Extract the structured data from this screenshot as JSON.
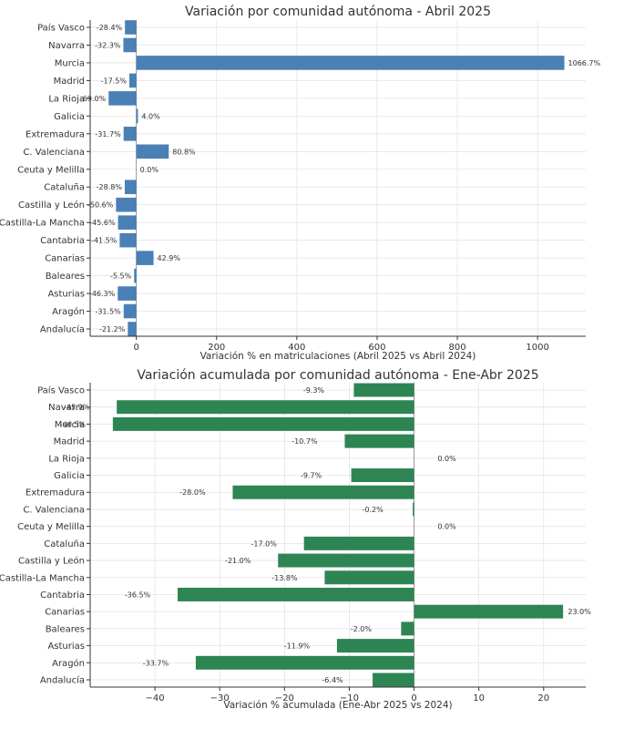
{
  "chart_data": [
    {
      "type": "bar",
      "orientation": "horizontal",
      "title": "Variación por comunidad autónoma - Abril 2025",
      "xlabel": "Variación % en matriculaciones (Abril 2025 vs Abril 2024)",
      "ylabel": "",
      "xlim": [
        -115,
        1120
      ],
      "xticks": [
        0,
        200,
        400,
        600,
        800,
        1000
      ],
      "xtick_labels": [
        "0",
        "200",
        "400",
        "600",
        "800",
        "1000"
      ],
      "grid": true,
      "color": "#4a80b6",
      "categories": [
        "País Vasco",
        "Navarra",
        "Murcia",
        "Madrid",
        "La Rioja",
        "Galicia",
        "Extremadura",
        "C. Valenciana",
        "Ceuta y Melilla",
        "Cataluña",
        "Castilla y León",
        "Castilla-La Mancha",
        "Cantabria",
        "Canarias",
        "Baleares",
        "Asturias",
        "Aragón",
        "Andalucía"
      ],
      "values": [
        -28.4,
        -32.3,
        1066.7,
        -17.5,
        -69.0,
        4.0,
        -31.7,
        80.8,
        0.0,
        -28.8,
        -50.6,
        -45.6,
        -41.5,
        42.9,
        -5.5,
        -46.3,
        -31.5,
        -21.2
      ],
      "value_labels": [
        "-28.4%",
        "-32.3%",
        "1066.7%",
        "-17.5%",
        "-69.0%",
        "4.0%",
        "-31.7%",
        "80.8%",
        "0.0%",
        "-28.8%",
        "-50.6%",
        "-45.6%",
        "-41.5%",
        "42.9%",
        "-5.5%",
        "-46.3%",
        "-31.5%",
        "-21.2%"
      ]
    },
    {
      "type": "bar",
      "orientation": "horizontal",
      "title": "Variación acumulada por comunidad autónoma - Ene-Abr 2025",
      "xlabel": "Variación % acumulada (Ene-Abr 2025 vs 2024)",
      "ylabel": "",
      "xlim": [
        -50,
        26.5
      ],
      "xticks": [
        -40,
        -30,
        -20,
        -10,
        0,
        10,
        20
      ],
      "xtick_labels": [
        "−40",
        "−30",
        "−20",
        "−10",
        "0",
        "10",
        "20"
      ],
      "grid": true,
      "color": "#2e8553",
      "categories": [
        "País Vasco",
        "Navarra",
        "Murcia",
        "Madrid",
        "La Rioja",
        "Galicia",
        "Extremadura",
        "C. Valenciana",
        "Ceuta y Melilla",
        "Cataluña",
        "Castilla y León",
        "Castilla-La Mancha",
        "Cantabria",
        "Canarias",
        "Baleares",
        "Asturias",
        "Aragón",
        "Andalucía"
      ],
      "values": [
        -9.3,
        -45.9,
        -46.5,
        -10.7,
        0.0,
        -9.7,
        -28.0,
        -0.2,
        0.0,
        -17.0,
        -21.0,
        -13.8,
        -36.5,
        23.0,
        -2.0,
        -11.9,
        -33.7,
        -6.4
      ],
      "value_labels": [
        "-9.3%",
        "-45.9%",
        "-46.5%",
        "-10.7%",
        "0.0%",
        "-9.7%",
        "-28.0%",
        "-0.2%",
        "0.0%",
        "-17.0%",
        "-21.0%",
        "-13.8%",
        "-36.5%",
        "23.0%",
        "-2.0%",
        "-11.9%",
        "-33.7%",
        "-6.4%"
      ]
    }
  ]
}
